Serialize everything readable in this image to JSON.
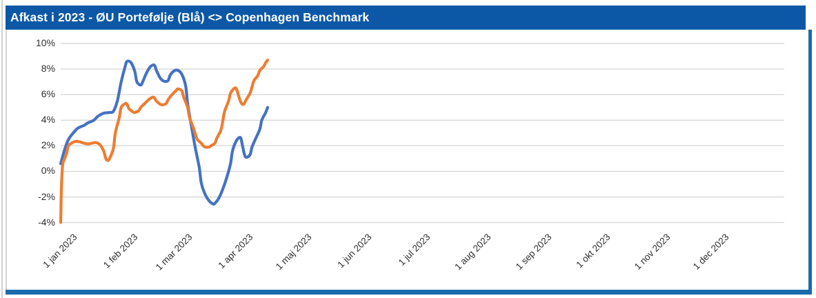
{
  "header": {
    "title": "Afkast i 2023 - ØU Portefølje (Blå) <> Copenhagen Benchmark",
    "bg": "#0c58a6",
    "text_color": "#ffffff"
  },
  "frame": {
    "rule_blue": "#1a6aae",
    "edge_gray": "#cfcfcf"
  },
  "chart_data": {
    "type": "line",
    "title": "Afkast i 2023 - ØU Portefølje (Blå) <> Copenhagen Benchmark",
    "xlabel": "",
    "ylabel": "",
    "ylim": [
      -4,
      10
    ],
    "y_ticks": [
      10,
      8,
      6,
      4,
      2,
      0,
      -2,
      -4
    ],
    "y_tick_labels": [
      "10%",
      "8%",
      "6%",
      "4%",
      "2%",
      "0%",
      "-2%",
      "-4%"
    ],
    "x_range_days": [
      0,
      365
    ],
    "x_tick_days": [
      0,
      31,
      59,
      90,
      120,
      151,
      181,
      212,
      243,
      273,
      304,
      334
    ],
    "x_tick_labels": [
      "1 jan 2023",
      "1 feb 2023",
      "1 mar 2023",
      "1 apr 2023",
      "1 maj 2023",
      "1 jun 2023",
      "1 jul 2023",
      "1 aug 2023",
      "1 sep 2023",
      "1 okt 2023",
      "1 nov 2023",
      "1 dec 2023"
    ],
    "grid": true,
    "gridline_color": "#d8d8d8",
    "axis_text_color": "#2e2e2e",
    "legend": "none",
    "series": [
      {
        "name": "ØU Portefølje (Blå)",
        "color": "#4472C4",
        "points_day_pct": [
          [
            0,
            0.6
          ],
          [
            2,
            1.7
          ],
          [
            4,
            2.5
          ],
          [
            7,
            3.1
          ],
          [
            9,
            3.4
          ],
          [
            12,
            3.6
          ],
          [
            14,
            3.8
          ],
          [
            17,
            4.0
          ],
          [
            19,
            4.3
          ],
          [
            22,
            4.55
          ],
          [
            25,
            4.6
          ],
          [
            27,
            4.7
          ],
          [
            29,
            5.5
          ],
          [
            31,
            7.0
          ],
          [
            33,
            8.2
          ],
          [
            34,
            8.6
          ],
          [
            36,
            8.5
          ],
          [
            38,
            7.8
          ],
          [
            39,
            7.0
          ],
          [
            41,
            6.75
          ],
          [
            42,
            7.0
          ],
          [
            44,
            7.7
          ],
          [
            46,
            8.2
          ],
          [
            48,
            8.3
          ],
          [
            49,
            7.9
          ],
          [
            51,
            7.3
          ],
          [
            53,
            7.05
          ],
          [
            55,
            7.1
          ],
          [
            56,
            7.5
          ],
          [
            58,
            7.85
          ],
          [
            60,
            7.9
          ],
          [
            62,
            7.6
          ],
          [
            64,
            6.7
          ],
          [
            65,
            5.3
          ],
          [
            67,
            3.5
          ],
          [
            69,
            1.8
          ],
          [
            71,
            0.3
          ],
          [
            72,
            -0.9
          ],
          [
            74,
            -1.8
          ],
          [
            76,
            -2.3
          ],
          [
            78,
            -2.55
          ],
          [
            79,
            -2.5
          ],
          [
            81,
            -2.1
          ],
          [
            83,
            -1.4
          ],
          [
            85,
            -0.5
          ],
          [
            87,
            0.6
          ],
          [
            88,
            1.6
          ],
          [
            90,
            2.4
          ],
          [
            92,
            2.65
          ],
          [
            93,
            2.1
          ],
          [
            94,
            1.4
          ],
          [
            95,
            1.1
          ],
          [
            97,
            1.3
          ],
          [
            98,
            1.9
          ],
          [
            100,
            2.6
          ],
          [
            102,
            3.3
          ],
          [
            103,
            4.0
          ],
          [
            105,
            4.6
          ],
          [
            106,
            5.0
          ]
        ]
      },
      {
        "name": "Copenhagen Benchmark",
        "color": "#ED7D31",
        "points_day_pct": [
          [
            0,
            -4.0
          ],
          [
            0.4,
            -1.2
          ],
          [
            1,
            0.5
          ],
          [
            2,
            1.0
          ],
          [
            3,
            1.4
          ],
          [
            4,
            2.0
          ],
          [
            6,
            2.25
          ],
          [
            8,
            2.35
          ],
          [
            10,
            2.3
          ],
          [
            12,
            2.2
          ],
          [
            14,
            2.15
          ],
          [
            16,
            2.2
          ],
          [
            18,
            2.25
          ],
          [
            20,
            2.1
          ],
          [
            22,
            1.6
          ],
          [
            23,
            1.05
          ],
          [
            24,
            0.85
          ],
          [
            25,
            1.0
          ],
          [
            27,
            1.8
          ],
          [
            28,
            3.0
          ],
          [
            30,
            4.2
          ],
          [
            31,
            5.0
          ],
          [
            33,
            5.3
          ],
          [
            34,
            5.25
          ],
          [
            35,
            4.9
          ],
          [
            37,
            4.65
          ],
          [
            38,
            4.6
          ],
          [
            40,
            4.75
          ],
          [
            41,
            5.0
          ],
          [
            43,
            5.3
          ],
          [
            45,
            5.6
          ],
          [
            47,
            5.8
          ],
          [
            48,
            5.75
          ],
          [
            49,
            5.5
          ],
          [
            51,
            5.25
          ],
          [
            52,
            5.2
          ],
          [
            54,
            5.3
          ],
          [
            55,
            5.6
          ],
          [
            57,
            6.0
          ],
          [
            59,
            6.3
          ],
          [
            60,
            6.45
          ],
          [
            62,
            6.3
          ],
          [
            63,
            5.8
          ],
          [
            65,
            5.0
          ],
          [
            66,
            4.2
          ],
          [
            68,
            3.4
          ],
          [
            69,
            2.9
          ],
          [
            70,
            2.5
          ],
          [
            72,
            2.2
          ],
          [
            73,
            2.0
          ],
          [
            74,
            1.9
          ],
          [
            76,
            1.9
          ],
          [
            77,
            2.0
          ],
          [
            79,
            2.2
          ],
          [
            80,
            2.6
          ],
          [
            82,
            3.2
          ],
          [
            83,
            3.9
          ],
          [
            84,
            4.7
          ],
          [
            86,
            5.5
          ],
          [
            87,
            6.1
          ],
          [
            89,
            6.5
          ],
          [
            90,
            6.45
          ],
          [
            91,
            6.0
          ],
          [
            92,
            5.5
          ],
          [
            93,
            5.25
          ],
          [
            94,
            5.3
          ],
          [
            95,
            5.6
          ],
          [
            97,
            6.1
          ],
          [
            98,
            6.6
          ],
          [
            99,
            7.1
          ],
          [
            101,
            7.5
          ],
          [
            102,
            7.9
          ],
          [
            104,
            8.2
          ],
          [
            105,
            8.5
          ],
          [
            106,
            8.7
          ]
        ]
      }
    ]
  }
}
